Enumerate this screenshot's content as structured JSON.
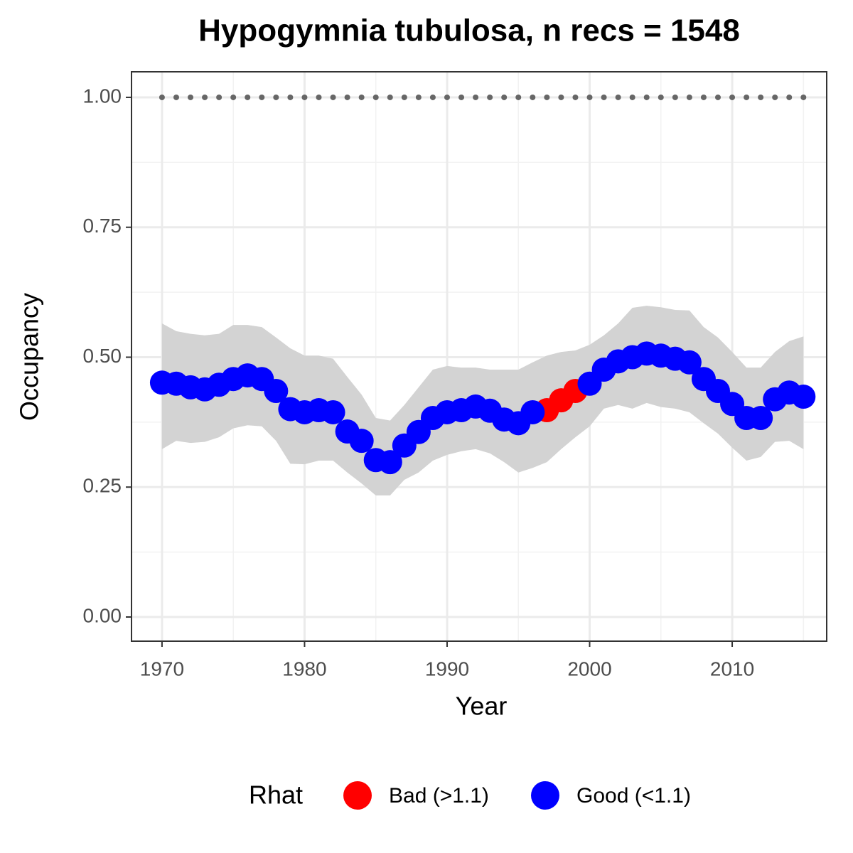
{
  "chart_data": {
    "type": "scatter",
    "title": "Hypogymnia tubulosa, n recs = 1548",
    "x_label": "Year",
    "y_label": "Occupancy",
    "legend_title": "Rhat",
    "x": [
      1970,
      1971,
      1972,
      1973,
      1974,
      1975,
      1976,
      1977,
      1978,
      1979,
      1980,
      1981,
      1982,
      1983,
      1984,
      1985,
      1986,
      1987,
      1988,
      1989,
      1990,
      1991,
      1992,
      1993,
      1994,
      1995,
      1996,
      1997,
      1998,
      1999,
      2000,
      2001,
      2002,
      2003,
      2004,
      2005,
      2006,
      2007,
      2008,
      2009,
      2010,
      2011,
      2012,
      2013,
      2014,
      2015
    ],
    "series": [
      {
        "name": "Bad (>1.1)",
        "color": "#ff0000",
        "values": [
          null,
          null,
          null,
          null,
          null,
          null,
          null,
          null,
          null,
          null,
          null,
          null,
          null,
          null,
          null,
          null,
          null,
          null,
          null,
          null,
          null,
          null,
          null,
          null,
          null,
          null,
          null,
          0.398,
          0.417,
          0.435,
          null,
          null,
          null,
          null,
          null,
          null,
          null,
          null,
          null,
          null,
          null,
          null,
          null,
          null,
          null,
          null
        ]
      },
      {
        "name": "Good (<1.1)",
        "color": "#0000ff",
        "values": [
          0.451,
          0.449,
          0.442,
          0.438,
          0.447,
          0.458,
          0.465,
          0.458,
          0.435,
          0.4,
          0.394,
          0.398,
          0.394,
          0.357,
          0.339,
          0.302,
          0.298,
          0.33,
          0.356,
          0.383,
          0.394,
          0.398,
          0.405,
          0.397,
          0.38,
          0.373,
          0.394,
          null,
          null,
          null,
          0.449,
          0.476,
          0.492,
          0.5,
          0.507,
          0.503,
          0.497,
          0.49,
          0.458,
          0.435,
          0.41,
          0.383,
          0.383,
          0.419,
          0.432,
          0.424
        ]
      }
    ],
    "ci_upper": [
      0.565,
      0.55,
      0.545,
      0.542,
      0.545,
      0.562,
      0.562,
      0.558,
      0.538,
      0.517,
      0.503,
      0.503,
      0.497,
      0.462,
      0.428,
      0.383,
      0.378,
      0.408,
      0.442,
      0.476,
      0.483,
      0.48,
      0.48,
      0.476,
      0.476,
      0.476,
      0.49,
      0.503,
      0.51,
      0.513,
      0.524,
      0.542,
      0.565,
      0.595,
      0.599,
      0.596,
      0.591,
      0.59,
      0.558,
      0.538,
      0.51,
      0.48,
      0.48,
      0.51,
      0.531,
      0.54
    ],
    "ci_lower": [
      0.323,
      0.339,
      0.335,
      0.337,
      0.346,
      0.363,
      0.369,
      0.367,
      0.339,
      0.295,
      0.294,
      0.301,
      0.301,
      0.278,
      0.257,
      0.234,
      0.234,
      0.264,
      0.278,
      0.301,
      0.312,
      0.319,
      0.323,
      0.315,
      0.298,
      0.278,
      0.287,
      0.298,
      0.323,
      0.346,
      0.367,
      0.401,
      0.408,
      0.401,
      0.412,
      0.404,
      0.401,
      0.394,
      0.373,
      0.353,
      0.326,
      0.301,
      0.308,
      0.337,
      0.339,
      0.323
    ],
    "ci_color": "#d3d3d3",
    "reference_values": [
      1,
      1,
      1,
      1,
      1,
      1,
      1,
      1,
      1,
      1,
      1,
      1,
      1,
      1,
      1,
      1,
      1,
      1,
      1,
      1,
      1,
      1,
      1,
      1,
      1,
      1,
      1,
      1,
      1,
      1,
      1,
      1,
      1,
      1,
      1,
      1,
      1,
      1,
      1,
      1,
      1,
      1,
      1,
      1,
      1,
      1
    ],
    "reference_color": "#666666",
    "xlim": [
      1967.86,
      2016.63
    ],
    "ylim": [
      -0.0465,
      1.0492
    ],
    "xticks": [
      1970,
      1980,
      1990,
      2000,
      2010
    ],
    "yticks": [
      {
        "value": 0,
        "label": "0.00"
      },
      {
        "value": 0.25,
        "label": "0.25"
      },
      {
        "value": 0.5,
        "label": "0.50"
      },
      {
        "value": 0.75,
        "label": "0.75"
      },
      {
        "value": 1,
        "label": "1.00"
      }
    ],
    "x_minor_ticks": [
      1975,
      1985,
      1995,
      2005,
      2015
    ],
    "y_minor_ticks": [
      0.125,
      0.375,
      0.625,
      0.875
    ],
    "grid": true
  }
}
